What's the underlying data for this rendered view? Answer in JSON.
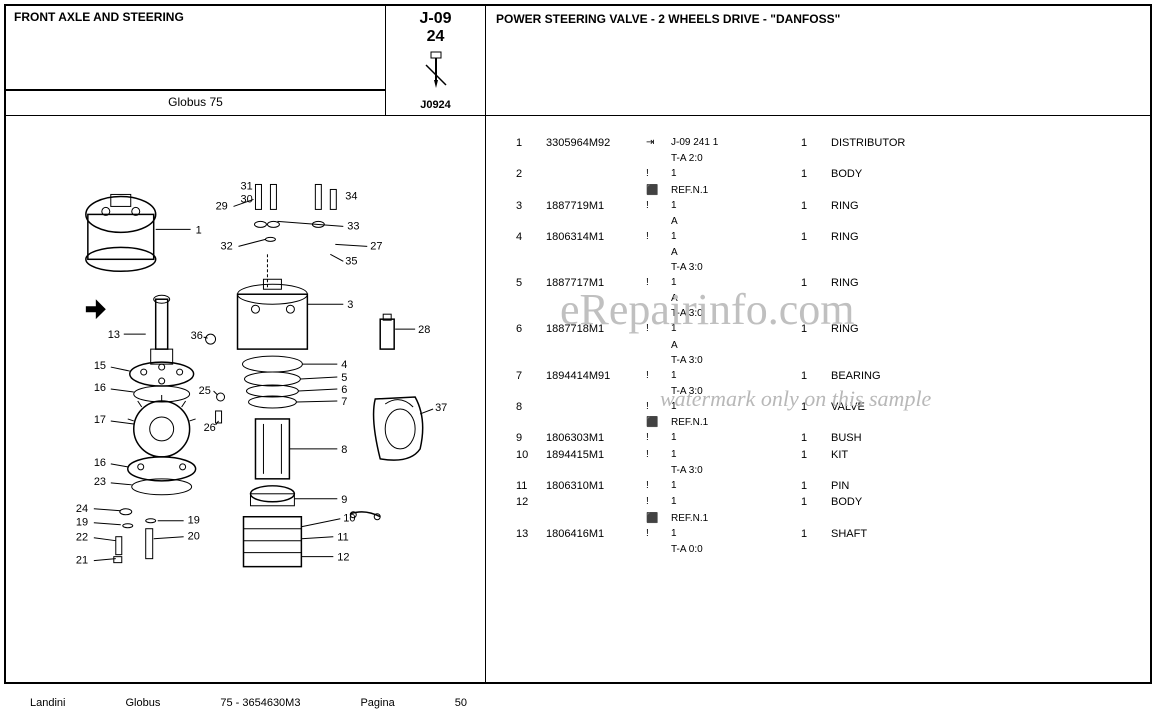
{
  "header": {
    "section_title": "FRONT AXLE AND STEERING",
    "model": "Globus 75",
    "code_line1": "J-09",
    "code_line2": "24",
    "code_ref": "J0924",
    "right_title": "POWER STEERING VALVE - 2 WHEELS DRIVE - \"DANFOSS\""
  },
  "parts": [
    {
      "idx": "1",
      "partno": "3305964M92",
      "icon": "⇥",
      "note": "J-09 241 1",
      "sub": "T-A 2:0",
      "qty": "1",
      "desc": "DISTRIBUTOR"
    },
    {
      "idx": "2",
      "partno": "",
      "icon": "!",
      "note": "1",
      "sub": "REF.N.1",
      "subicon": "⬛",
      "qty": "1",
      "desc": "BODY"
    },
    {
      "idx": "3",
      "partno": "1887719M1",
      "icon": "!",
      "note": "1",
      "sub": "A",
      "qty": "1",
      "desc": "RING"
    },
    {
      "idx": "4",
      "partno": "1806314M1",
      "icon": "!",
      "note": "1",
      "sub": "A",
      "sub2": "T-A 3:0",
      "qty": "1",
      "desc": "RING"
    },
    {
      "idx": "5",
      "partno": "1887717M1",
      "icon": "!",
      "note": "1",
      "sub": "A",
      "sub2": "T-A 3:0",
      "qty": "1",
      "desc": "RING"
    },
    {
      "idx": "6",
      "partno": "1887718M1",
      "icon": "!",
      "note": "1",
      "sub": "A",
      "sub2": "T-A 3:0",
      "qty": "1",
      "desc": "RING"
    },
    {
      "idx": "7",
      "partno": "1894414M91",
      "icon": "!",
      "note": "1",
      "sub": "T-A 3:0",
      "qty": "1",
      "desc": "BEARING"
    },
    {
      "idx": "8",
      "partno": "",
      "icon": "!",
      "note": "1",
      "sub": "REF.N.1",
      "subicon": "⬛",
      "qty": "1",
      "desc": "VALVE"
    },
    {
      "idx": "9",
      "partno": "1806303M1",
      "icon": "!",
      "note": "1",
      "sub": "",
      "qty": "1",
      "desc": "BUSH"
    },
    {
      "idx": "10",
      "partno": "1894415M1",
      "icon": "!",
      "note": "1",
      "sub": "T-A 3:0",
      "qty": "1",
      "desc": "KIT"
    },
    {
      "idx": "11",
      "partno": "1806310M1",
      "icon": "!",
      "note": "1",
      "sub": "",
      "qty": "1",
      "desc": "PIN"
    },
    {
      "idx": "12",
      "partno": "",
      "icon": "!",
      "note": "1",
      "sub": "REF.N.1",
      "subicon": "⬛",
      "qty": "1",
      "desc": "BODY"
    },
    {
      "idx": "13",
      "partno": "1806416M1",
      "icon": "!",
      "note": "1",
      "sub": "T-A 0:0",
      "qty": "1",
      "desc": "SHAFT"
    }
  ],
  "diagram": {
    "callouts": [
      "1",
      "3",
      "4",
      "5",
      "6",
      "7",
      "8",
      "9",
      "10",
      "11",
      "12",
      "13",
      "15",
      "16",
      "17",
      "19",
      "20",
      "21",
      "22",
      "23",
      "24",
      "25",
      "26",
      "27",
      "28",
      "29",
      "30",
      "31",
      "32",
      "33",
      "34",
      "35",
      "36",
      "37"
    ]
  },
  "footer": {
    "brand": "Landini",
    "model": "Globus",
    "ref": "75 - 3654630M3",
    "page_label": "Pagina",
    "page_no": "50"
  },
  "watermark": {
    "main": "eRepairinfo.com",
    "sub": "watermark only on this sample"
  },
  "colors": {
    "text": "#000000",
    "bg": "#ffffff",
    "watermark": "#c0c0c0"
  }
}
